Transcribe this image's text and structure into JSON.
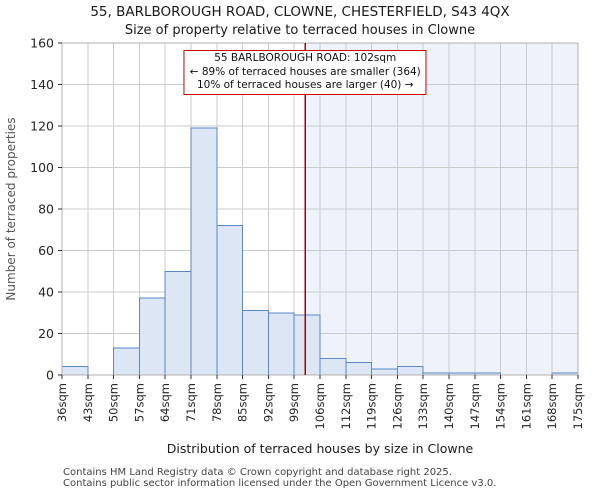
{
  "chart_data": {
    "type": "bar",
    "title": "55, BARLBOROUGH ROAD, CLOWNE, CHESTERFIELD, S43 4QX",
    "subtitle": "Size of property relative to terraced houses in Clowne",
    "xlabel": "Distribution of terraced houses by size in Clowne",
    "ylabel": "Number of terraced properties",
    "ylim": [
      0,
      160
    ],
    "ytick_step": 20,
    "grid": true,
    "bin_labels": [
      "36sqm",
      "43sqm",
      "50sqm",
      "57sqm",
      "64sqm",
      "71sqm",
      "78sqm",
      "85sqm",
      "92sqm",
      "99sqm",
      "106sqm",
      "112sqm",
      "119sqm",
      "126sqm",
      "133sqm",
      "140sqm",
      "147sqm",
      "154sqm",
      "161sqm",
      "168sqm",
      "175sqm"
    ],
    "values": [
      4,
      0,
      13,
      37,
      50,
      119,
      72,
      31,
      30,
      29,
      8,
      6,
      3,
      4,
      1,
      1,
      1,
      0,
      0,
      1
    ],
    "marker_size_sqm": 102,
    "annotation": {
      "line1": "55 BARLBOROUGH ROAD: 102sqm",
      "line2": "← 89% of terraced houses are smaller (364)",
      "line3": "10% of terraced houses are larger (40) →"
    },
    "colors": {
      "bar_fill": "#dce6f5",
      "bar_stroke": "#5b87c5",
      "marker_line": "#aa0000",
      "annotation_border": "#cc0000",
      "shade_fill": "#eef2fb",
      "grid": "#cccccc",
      "plot_border": "#b0b0b0"
    }
  },
  "footer": {
    "line1": "Contains HM Land Registry data © Crown copyright and database right 2025.",
    "line2": "Contains public sector information licensed under the Open Government Licence v3.0."
  }
}
